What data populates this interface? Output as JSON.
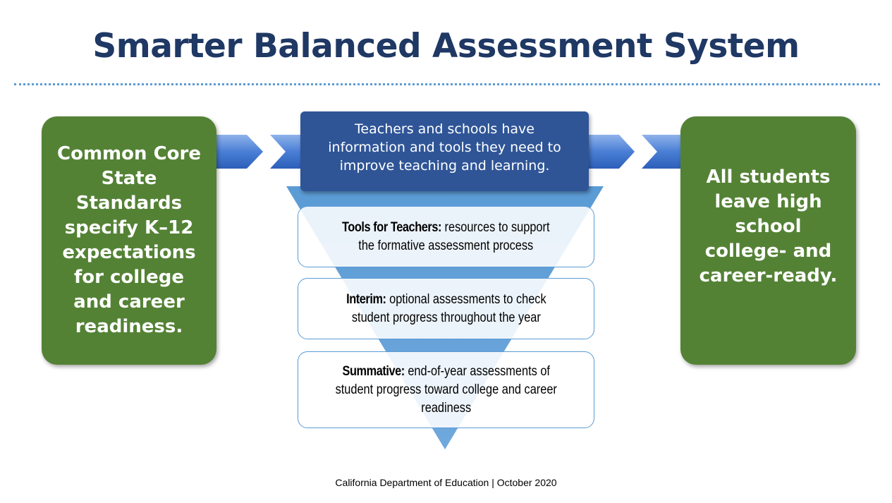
{
  "title": "Smarter Balanced Assessment System",
  "left_box": {
    "lines": [
      "Common Core",
      "State",
      "Standards",
      "specify K–12",
      "expectations",
      "for college",
      "and career",
      "readiness."
    ]
  },
  "top_box": {
    "lines": [
      "Teachers and schools have",
      "information and tools they need to",
      "improve teaching and learning."
    ]
  },
  "right_box": {
    "lines": [
      "All students",
      "leave high",
      "school",
      "college- and",
      "career-ready."
    ]
  },
  "layers": [
    {
      "label": "Tools for Teachers:",
      "line1": " resources to support",
      "line2": "the formative assessment process",
      "line3": ""
    },
    {
      "label": "Interim:",
      "line1": " optional assessments to check",
      "line2": "student progress throughout the year",
      "line3": ""
    },
    {
      "label": "Summative:",
      "line1": " end-of-year assessments of",
      "line2": "student progress toward college and career",
      "line3": "readiness"
    }
  ],
  "footer": "California Department of Education | October 2020",
  "colors": {
    "title": "#1f3864",
    "green": "#548235",
    "dark_blue": "#2f5597",
    "arrow_blue": "#4472c4",
    "triangle": "#5b9bd5"
  }
}
